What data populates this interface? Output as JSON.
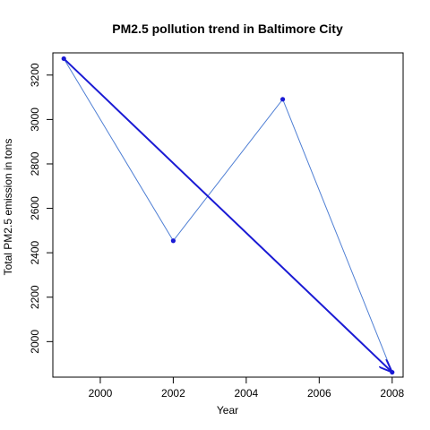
{
  "chart_data": {
    "type": "line",
    "title": "PM2.5 pollution trend in Baltimore City",
    "xlabel": "Year",
    "ylabel": "Total PM2.5 emission in tons",
    "x_ticks": [
      2000,
      2002,
      2004,
      2006,
      2008
    ],
    "y_ticks": [
      2000,
      2200,
      2400,
      2600,
      2800,
      3000,
      3200
    ],
    "xlim": [
      1998.7,
      2008.3
    ],
    "ylim": [
      1840,
      3300
    ],
    "series": [
      {
        "x": [
          1999,
          2002,
          2005,
          2008
        ],
        "y": [
          3274,
          2454,
          3091,
          1862
        ],
        "color": "#4f7fd4"
      }
    ],
    "arrow": {
      "from": [
        1999,
        3274
      ],
      "to": [
        2008,
        1862
      ],
      "color": "#1a1ad4"
    },
    "point_color": "#1a1ad4",
    "grid": false
  }
}
